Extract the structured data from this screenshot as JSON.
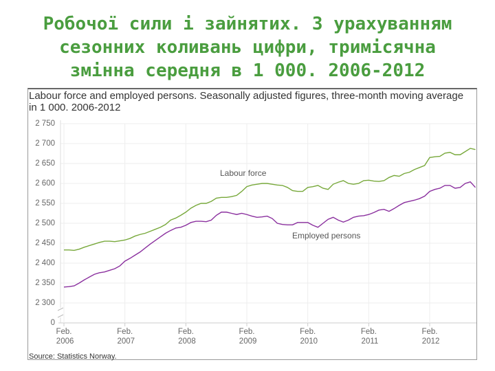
{
  "heading": [
    "Робочої сили і зайнятих. З урахуванням",
    "сезонних коливань цифри, тримісячна",
    "змінна середня в 1 000. 2006-2012"
  ],
  "chart_data": {
    "type": "line",
    "title": "Labour force and employed persons. Seasonally adjusted figures, three-month moving average in 1 000. 2006-2012",
    "source": "Source: Statistics Norway.",
    "categories": [
      "Feb. 2006",
      null,
      null,
      null,
      null,
      null,
      null,
      null,
      null,
      null,
      null,
      null,
      "Feb. 2007",
      null,
      null,
      null,
      null,
      null,
      null,
      null,
      null,
      null,
      null,
      null,
      "Feb. 2008",
      null,
      null,
      null,
      null,
      null,
      null,
      null,
      null,
      null,
      null,
      null,
      "Feb. 2009",
      null,
      null,
      null,
      null,
      null,
      null,
      null,
      null,
      null,
      null,
      null,
      "Feb. 2010",
      null,
      null,
      null,
      null,
      null,
      null,
      null,
      null,
      null,
      null,
      null,
      "Feb. 2011",
      null,
      null,
      null,
      null,
      null,
      null,
      null,
      null,
      null,
      null,
      null,
      "Feb. 2012",
      null,
      null,
      null,
      null,
      null,
      null,
      null,
      null,
      null
    ],
    "series": [
      {
        "name": "Labour force",
        "color": "#77a83a",
        "values": [
          2433,
          2433,
          2432,
          2435,
          2440,
          2444,
          2448,
          2452,
          2455,
          2455,
          2454,
          2456,
          2458,
          2462,
          2468,
          2472,
          2475,
          2480,
          2485,
          2490,
          2497,
          2508,
          2513,
          2520,
          2528,
          2538,
          2545,
          2550,
          2550,
          2555,
          2563,
          2565,
          2565,
          2567,
          2570,
          2580,
          2592,
          2596,
          2598,
          2600,
          2600,
          2598,
          2596,
          2595,
          2590,
          2582,
          2580,
          2580,
          2590,
          2592,
          2595,
          2588,
          2585,
          2598,
          2603,
          2607,
          2600,
          2598,
          2600,
          2607,
          2608,
          2606,
          2605,
          2607,
          2615,
          2620,
          2618,
          2625,
          2628,
          2635,
          2640,
          2645,
          2665,
          2667,
          2668,
          2676,
          2678,
          2672,
          2672,
          2680,
          2688,
          2685
        ]
      },
      {
        "name": "Employed persons",
        "color": "#8a2f9e",
        "values": [
          2340,
          2341,
          2343,
          2350,
          2358,
          2365,
          2372,
          2376,
          2378,
          2382,
          2386,
          2393,
          2405,
          2412,
          2420,
          2428,
          2438,
          2448,
          2457,
          2466,
          2475,
          2482,
          2488,
          2490,
          2495,
          2502,
          2505,
          2505,
          2504,
          2508,
          2520,
          2528,
          2528,
          2525,
          2522,
          2525,
          2522,
          2518,
          2515,
          2516,
          2518,
          2512,
          2500,
          2497,
          2496,
          2496,
          2502,
          2502,
          2502,
          2495,
          2490,
          2500,
          2510,
          2515,
          2508,
          2503,
          2508,
          2515,
          2518,
          2519,
          2522,
          2527,
          2533,
          2535,
          2530,
          2537,
          2545,
          2552,
          2555,
          2558,
          2562,
          2568,
          2580,
          2585,
          2588,
          2595,
          2595,
          2588,
          2590,
          2600,
          2604,
          2590
        ]
      }
    ],
    "ylim": [
      2300,
      2750
    ],
    "yticks": [
      {
        "value": 2750,
        "label": "2 750"
      },
      {
        "value": 2700,
        "label": "2 700"
      },
      {
        "value": 2650,
        "label": "2 650"
      },
      {
        "value": 2600,
        "label": "2 600"
      },
      {
        "value": 2550,
        "label": "2 550"
      },
      {
        "value": 2500,
        "label": "2 500"
      },
      {
        "value": 2450,
        "label": "2 450"
      },
      {
        "value": 2400,
        "label": "2 400"
      },
      {
        "value": 2350,
        "label": "2 350"
      },
      {
        "value": 2300,
        "label": "2 300"
      },
      0
    ],
    "axis_break": true,
    "grid": true
  }
}
